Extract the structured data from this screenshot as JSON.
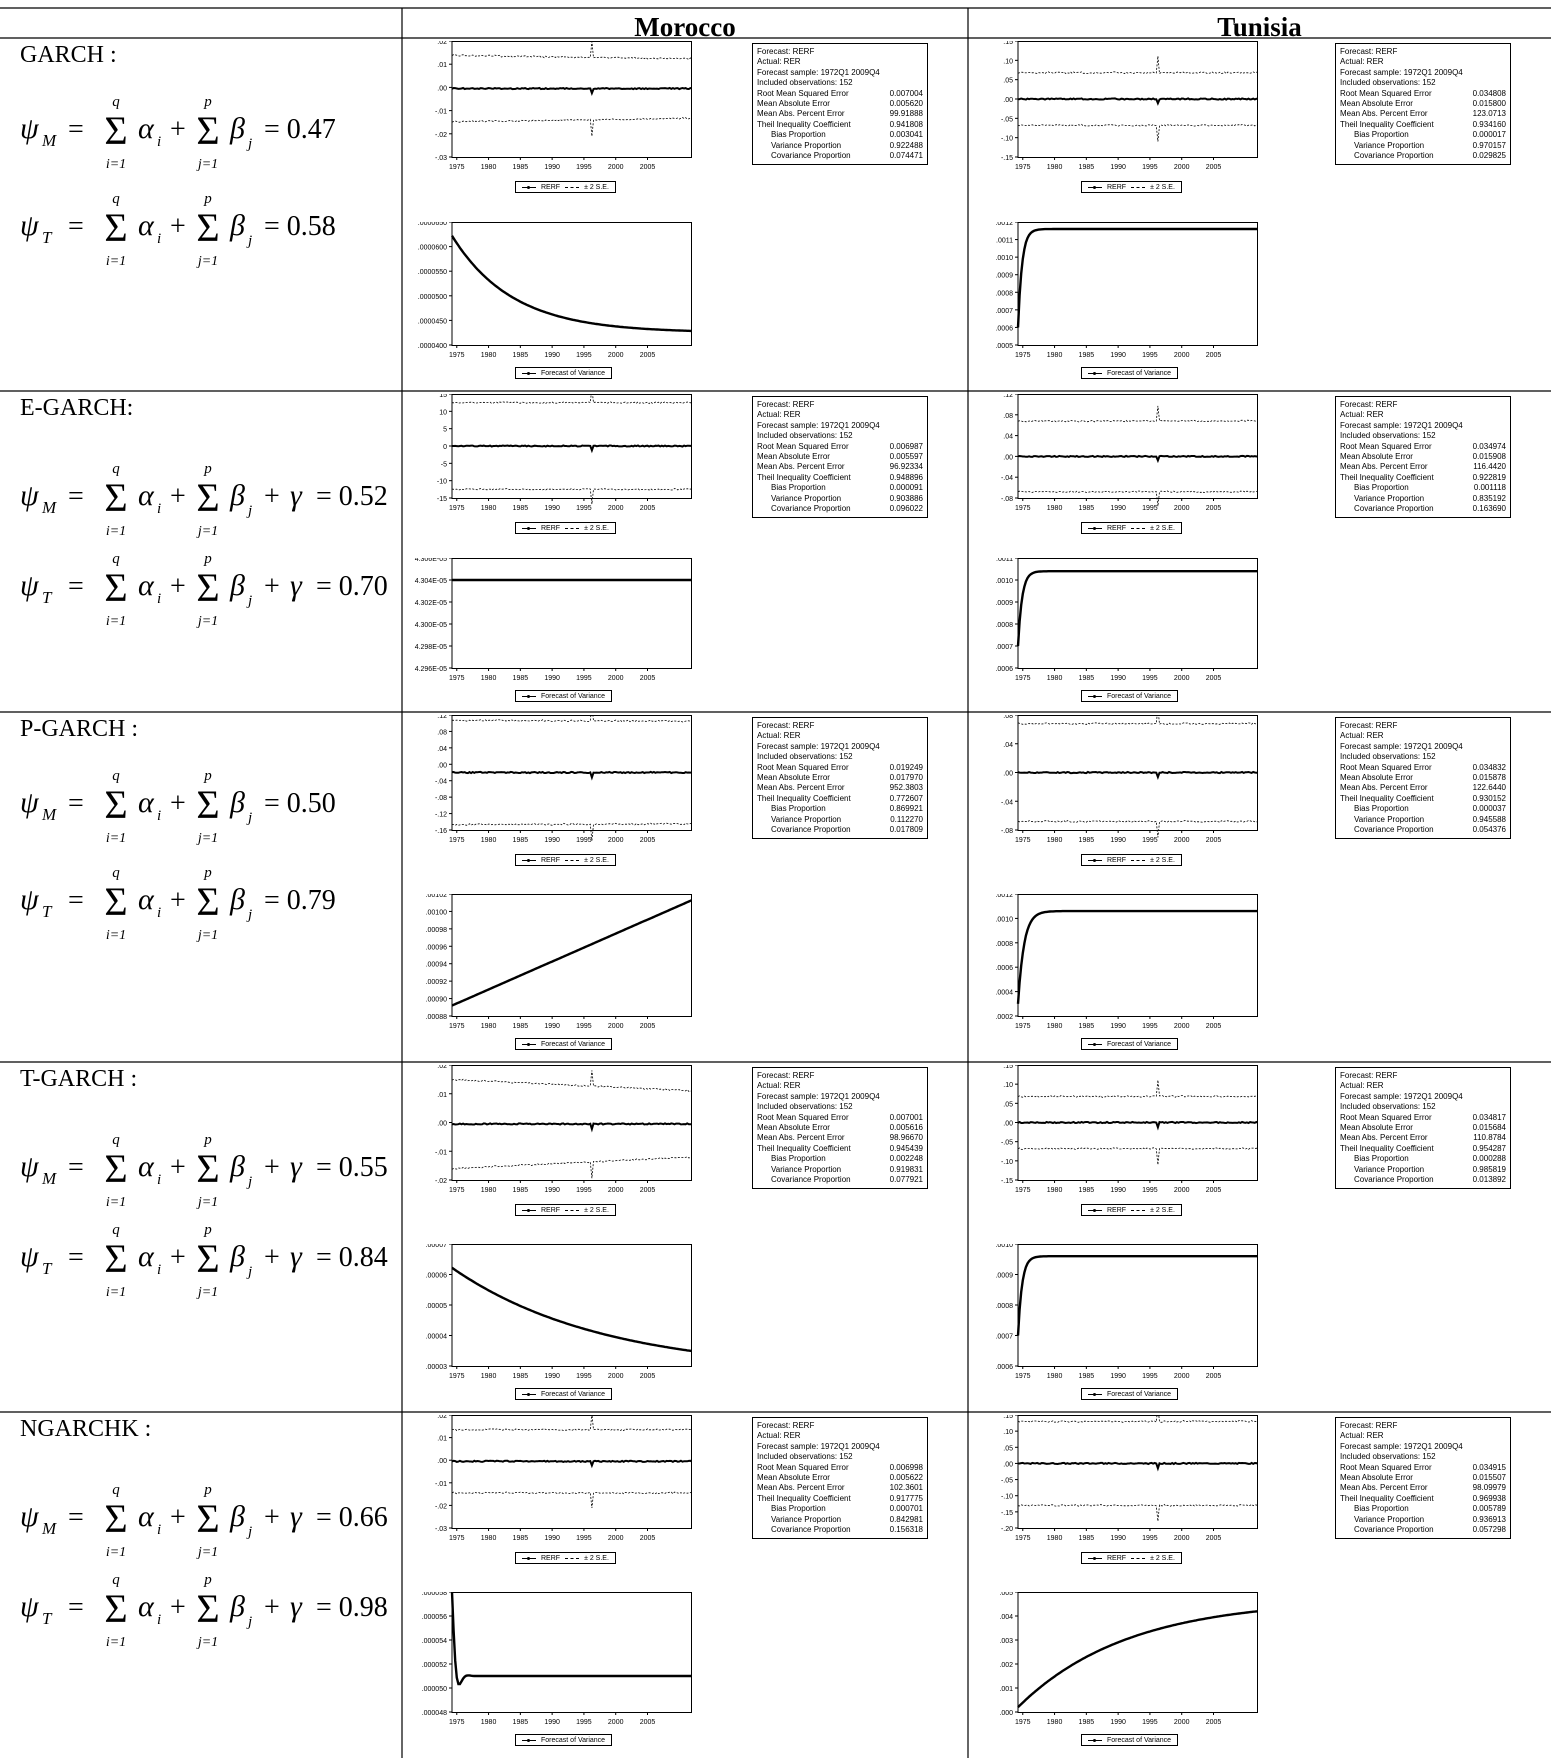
{
  "header": {
    "left": "",
    "morocco": "Morocco",
    "tunisia": "Tunisia"
  },
  "legend_labels": {
    "rerf": "RERF",
    "se": "± 2 S.E.",
    "var": "Forecast of Variance"
  },
  "xticks": [
    "1975",
    "1980",
    "1985",
    "1990",
    "1995",
    "2000",
    "2005"
  ],
  "stat_labels": {
    "forecast": "Forecast: RERF",
    "actual": "Actual: RER",
    "sample": "Forecast sample: 1972Q1 2009Q4",
    "obs": "Included observations: 152",
    "rmse": "Root Mean Squared Error",
    "mae": "Mean Absolute Error",
    "mape": "Mean Abs. Percent Error",
    "theil": "Theil Inequality Coefficient",
    "bias": "Bias Proportion",
    "variance": "Variance Proportion",
    "covariance": "Covariance Proportion"
  },
  "models": [
    {
      "name": "GARCH :",
      "psi_m": "0.47",
      "psi_t": "0.58",
      "gamma": false,
      "morocco": {
        "stats": [
          "0.007004",
          "0.005620",
          "99.91888",
          "0.941808",
          "0.003041",
          "0.922488",
          "0.074471"
        ],
        "forecast_chart": {
          "type": "line",
          "yticks": [
            ".02",
            ".01",
            ".00",
            "-.01",
            "-.02",
            "-.03"
          ],
          "ylim": [
            -0.03,
            0.02
          ],
          "center": -0.0005,
          "band": [
            0.0143,
            0.0128
          ]
        },
        "variance_chart": {
          "type": "line",
          "yticks": [
            ".0000650",
            ".0000600",
            ".0000550",
            ".0000500",
            ".0000450",
            ".0000400"
          ],
          "ylim": [
            4e-05,
            6.5e-05
          ],
          "shape": "decay",
          "start": 6.22e-05,
          "end": 4.25e-05,
          "rate": 4
        }
      },
      "tunisia": {
        "stats": [
          "0.034808",
          "0.015800",
          "123.0713",
          "0.934160",
          "0.000017",
          "0.970157",
          "0.029825"
        ],
        "forecast_chart": {
          "type": "line",
          "yticks": [
            ".15",
            ".10",
            ".05",
            ".00",
            "-.05",
            "-.10",
            "-.15"
          ],
          "ylim": [
            -0.15,
            0.15
          ],
          "center": 0.0,
          "band": [
            0.068,
            0.068
          ]
        },
        "variance_chart": {
          "type": "line",
          "yticks": [
            ".0012",
            ".0011",
            ".0010",
            ".0009",
            ".0008",
            ".0007",
            ".0006",
            ".0005"
          ],
          "ylim": [
            0.0005,
            0.0012
          ],
          "shape": "rise",
          "start": 0.0006,
          "end": 0.00116,
          "rate": 60
        }
      }
    },
    {
      "name": "E-GARCH:",
      "psi_m": "0.52",
      "psi_t": "0.70",
      "gamma": true,
      "morocco": {
        "stats": [
          "0.006987",
          "0.005597",
          "96.92334",
          "0.948896",
          "0.000091",
          "0.903886",
          "0.096022"
        ],
        "forecast_chart": {
          "type": "line",
          "yticks": [
            "15",
            "10",
            "5",
            "0",
            "-5",
            "-10",
            "-15"
          ],
          "ylim": [
            -15,
            15
          ],
          "center": 0,
          "band": [
            12.5,
            12.5
          ]
        },
        "variance_chart": {
          "type": "line",
          "yticks": [
            "4.306E-05",
            "4.304E-05",
            "4.302E-05",
            "4.300E-05",
            "4.298E-05",
            "4.296E-05"
          ],
          "ylim": [
            4.296e-05,
            4.306e-05
          ],
          "shape": "flat",
          "start": 4.304e-05,
          "end": 4.304e-05,
          "rate": 0
        }
      },
      "tunisia": {
        "stats": [
          "0.034974",
          "0.015908",
          "116.4420",
          "0.922819",
          "0.001118",
          "0.835192",
          "0.163690"
        ],
        "forecast_chart": {
          "type": "line",
          "yticks": [
            ".12",
            ".08",
            ".04",
            ".00",
            "-.04",
            "-.08"
          ],
          "ylim": [
            -0.08,
            0.12
          ],
          "center": 0.0,
          "band": [
            0.068,
            0.068
          ]
        },
        "variance_chart": {
          "type": "line",
          "yticks": [
            ".0011",
            ".0010",
            ".0009",
            ".0008",
            ".0007",
            ".0006"
          ],
          "ylim": [
            0.0006,
            0.0011
          ],
          "shape": "rise",
          "start": 0.0007,
          "end": 0.00104,
          "rate": 60
        }
      }
    },
    {
      "name": "P-GARCH :",
      "psi_m": "0.50",
      "psi_t": "0.79",
      "gamma": false,
      "morocco": {
        "stats": [
          "0.019249",
          "0.017970",
          "952.3803",
          "0.772607",
          "0.869921",
          "0.112270",
          "0.017809"
        ],
        "forecast_chart": {
          "type": "line",
          "yticks": [
            ".12",
            ".08",
            ".04",
            ".00",
            "-.04",
            "-.08",
            "-.12",
            "-.16"
          ],
          "ylim": [
            -0.16,
            0.12
          ],
          "center": -0.02,
          "band": [
            0.127,
            0.125
          ]
        },
        "variance_chart": {
          "type": "line",
          "yticks": [
            ".00102",
            ".00100",
            ".00098",
            ".00096",
            ".00094",
            ".00092",
            ".00090",
            ".00088"
          ],
          "ylim": [
            0.00088,
            0.00102
          ],
          "shape": "linear",
          "start": 0.000892,
          "end": 0.001013,
          "rate": 0
        }
      },
      "tunisia": {
        "stats": [
          "0.034832",
          "0.015878",
          "122.6440",
          "0.930152",
          "0.000037",
          "0.945588",
          "0.054376"
        ],
        "forecast_chart": {
          "type": "line",
          "yticks": [
            ".08",
            ".04",
            ".00",
            "-.04",
            "-.08"
          ],
          "ylim": [
            -0.08,
            0.08
          ],
          "center": 0.0,
          "band": [
            0.068,
            0.068
          ]
        },
        "variance_chart": {
          "type": "line",
          "yticks": [
            ".0012",
            ".0010",
            ".0008",
            ".0006",
            ".0004",
            ".0002"
          ],
          "ylim": [
            0.0002,
            0.0012
          ],
          "shape": "rise",
          "start": 0.0003,
          "end": 0.00106,
          "rate": 40
        }
      }
    },
    {
      "name": "T-GARCH :",
      "psi_m": "0.55",
      "psi_t": "0.84",
      "gamma": true,
      "morocco": {
        "stats": [
          "0.007001",
          "0.005616",
          "98.96670",
          "0.945439",
          "0.002248",
          "0.919831",
          "0.077921"
        ],
        "forecast_chart": {
          "type": "line",
          "yticks": [
            ".02",
            ".01",
            ".00",
            "-.01",
            "-.02"
          ],
          "ylim": [
            -0.02,
            0.02
          ],
          "center": -0.0005,
          "band": [
            0.0155,
            0.0115
          ]
        },
        "variance_chart": {
          "type": "line",
          "yticks": [
            ".00007",
            ".00006",
            ".00005",
            ".00004",
            ".00003"
          ],
          "ylim": [
            3e-05,
            7e-05
          ],
          "shape": "decay",
          "start": 6.22e-05,
          "end": 2.8e-05,
          "rate": 1.6
        }
      },
      "tunisia": {
        "stats": [
          "0.034817",
          "0.015684",
          "110.8784",
          "0.954287",
          "0.000288",
          "0.985819",
          "0.013892"
        ],
        "forecast_chart": {
          "type": "line",
          "yticks": [
            ".15",
            ".10",
            ".05",
            ".00",
            "-.05",
            "-.10",
            "-.15"
          ],
          "ylim": [
            -0.15,
            0.15
          ],
          "center": 0.0,
          "band": [
            0.068,
            0.068
          ]
        },
        "variance_chart": {
          "type": "line",
          "yticks": [
            ".0010",
            ".0009",
            ".0008",
            ".0007",
            ".0006"
          ],
          "ylim": [
            0.0006,
            0.001
          ],
          "shape": "rise",
          "start": 0.0007,
          "end": 0.00096,
          "rate": 60
        }
      }
    },
    {
      "name": "NGARCHK :",
      "psi_m": "0.66",
      "psi_t": "0.98",
      "gamma": true,
      "morocco": {
        "stats": [
          "0.006998",
          "0.005622",
          "102.3601",
          "0.917775",
          "0.000701",
          "0.842981",
          "0.156318"
        ],
        "forecast_chart": {
          "type": "line",
          "yticks": [
            ".02",
            ".01",
            ".00",
            "-.01",
            "-.02",
            "-.03"
          ],
          "ylim": [
            -0.03,
            0.02
          ],
          "center": -0.0005,
          "band": [
            0.014,
            0.014
          ]
        },
        "variance_chart": {
          "type": "line",
          "yticks": [
            ".000058",
            ".000056",
            ".000054",
            ".000052",
            ".000050",
            ".000048"
          ],
          "ylim": [
            4.8e-05,
            5.8e-05
          ],
          "shape": "osc",
          "start": 5.8e-05,
          "end": 5.1e-05,
          "rate": 0
        }
      },
      "tunisia": {
        "stats": [
          "0.034915",
          "0.015507",
          "98.09979",
          "0.969938",
          "0.005789",
          "0.936913",
          "0.057298"
        ],
        "forecast_chart": {
          "type": "line",
          "yticks": [
            ".15",
            ".10",
            ".05",
            ".00",
            "-.05",
            "-.10",
            "-.15",
            "-.20"
          ],
          "ylim": [
            -0.2,
            0.15
          ],
          "center": 0.0,
          "band": [
            0.13,
            0.13
          ]
        },
        "variance_chart": {
          "type": "line",
          "yticks": [
            ".005",
            ".004",
            ".003",
            ".002",
            ".001",
            ".000"
          ],
          "ylim": [
            0,
            0.005
          ],
          "shape": "growth",
          "start": 0.0002,
          "end": 0.0042,
          "rate": 2.2
        }
      }
    }
  ]
}
